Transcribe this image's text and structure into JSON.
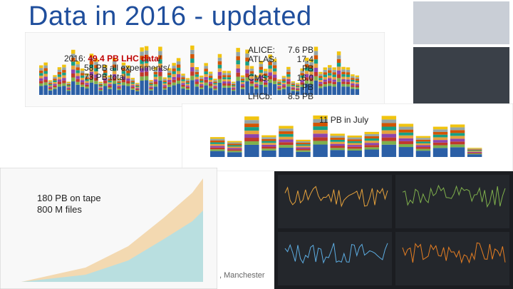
{
  "title": "Data in 2016 - updated",
  "lhc_note": {
    "year": "2016:",
    "highlight": "49.4 PB LHC data",
    "slash": "/",
    "line2": "58 PB all experiments/",
    "line3": "73 PB total"
  },
  "experiments": [
    {
      "name": "ALICE:",
      "value": "7.6 PB"
    },
    {
      "name": "ATLAS:",
      "value": "17.4 PB"
    },
    {
      "name": "CMS:",
      "value": "16.0 PB"
    },
    {
      "name": "LHCb:",
      "value": "8.5 PB"
    }
  ],
  "july_note": "11 PB in July",
  "tape_note": [
    "180 PB on tape",
    "800 M files"
  ],
  "footer": ", Manchester"
}
